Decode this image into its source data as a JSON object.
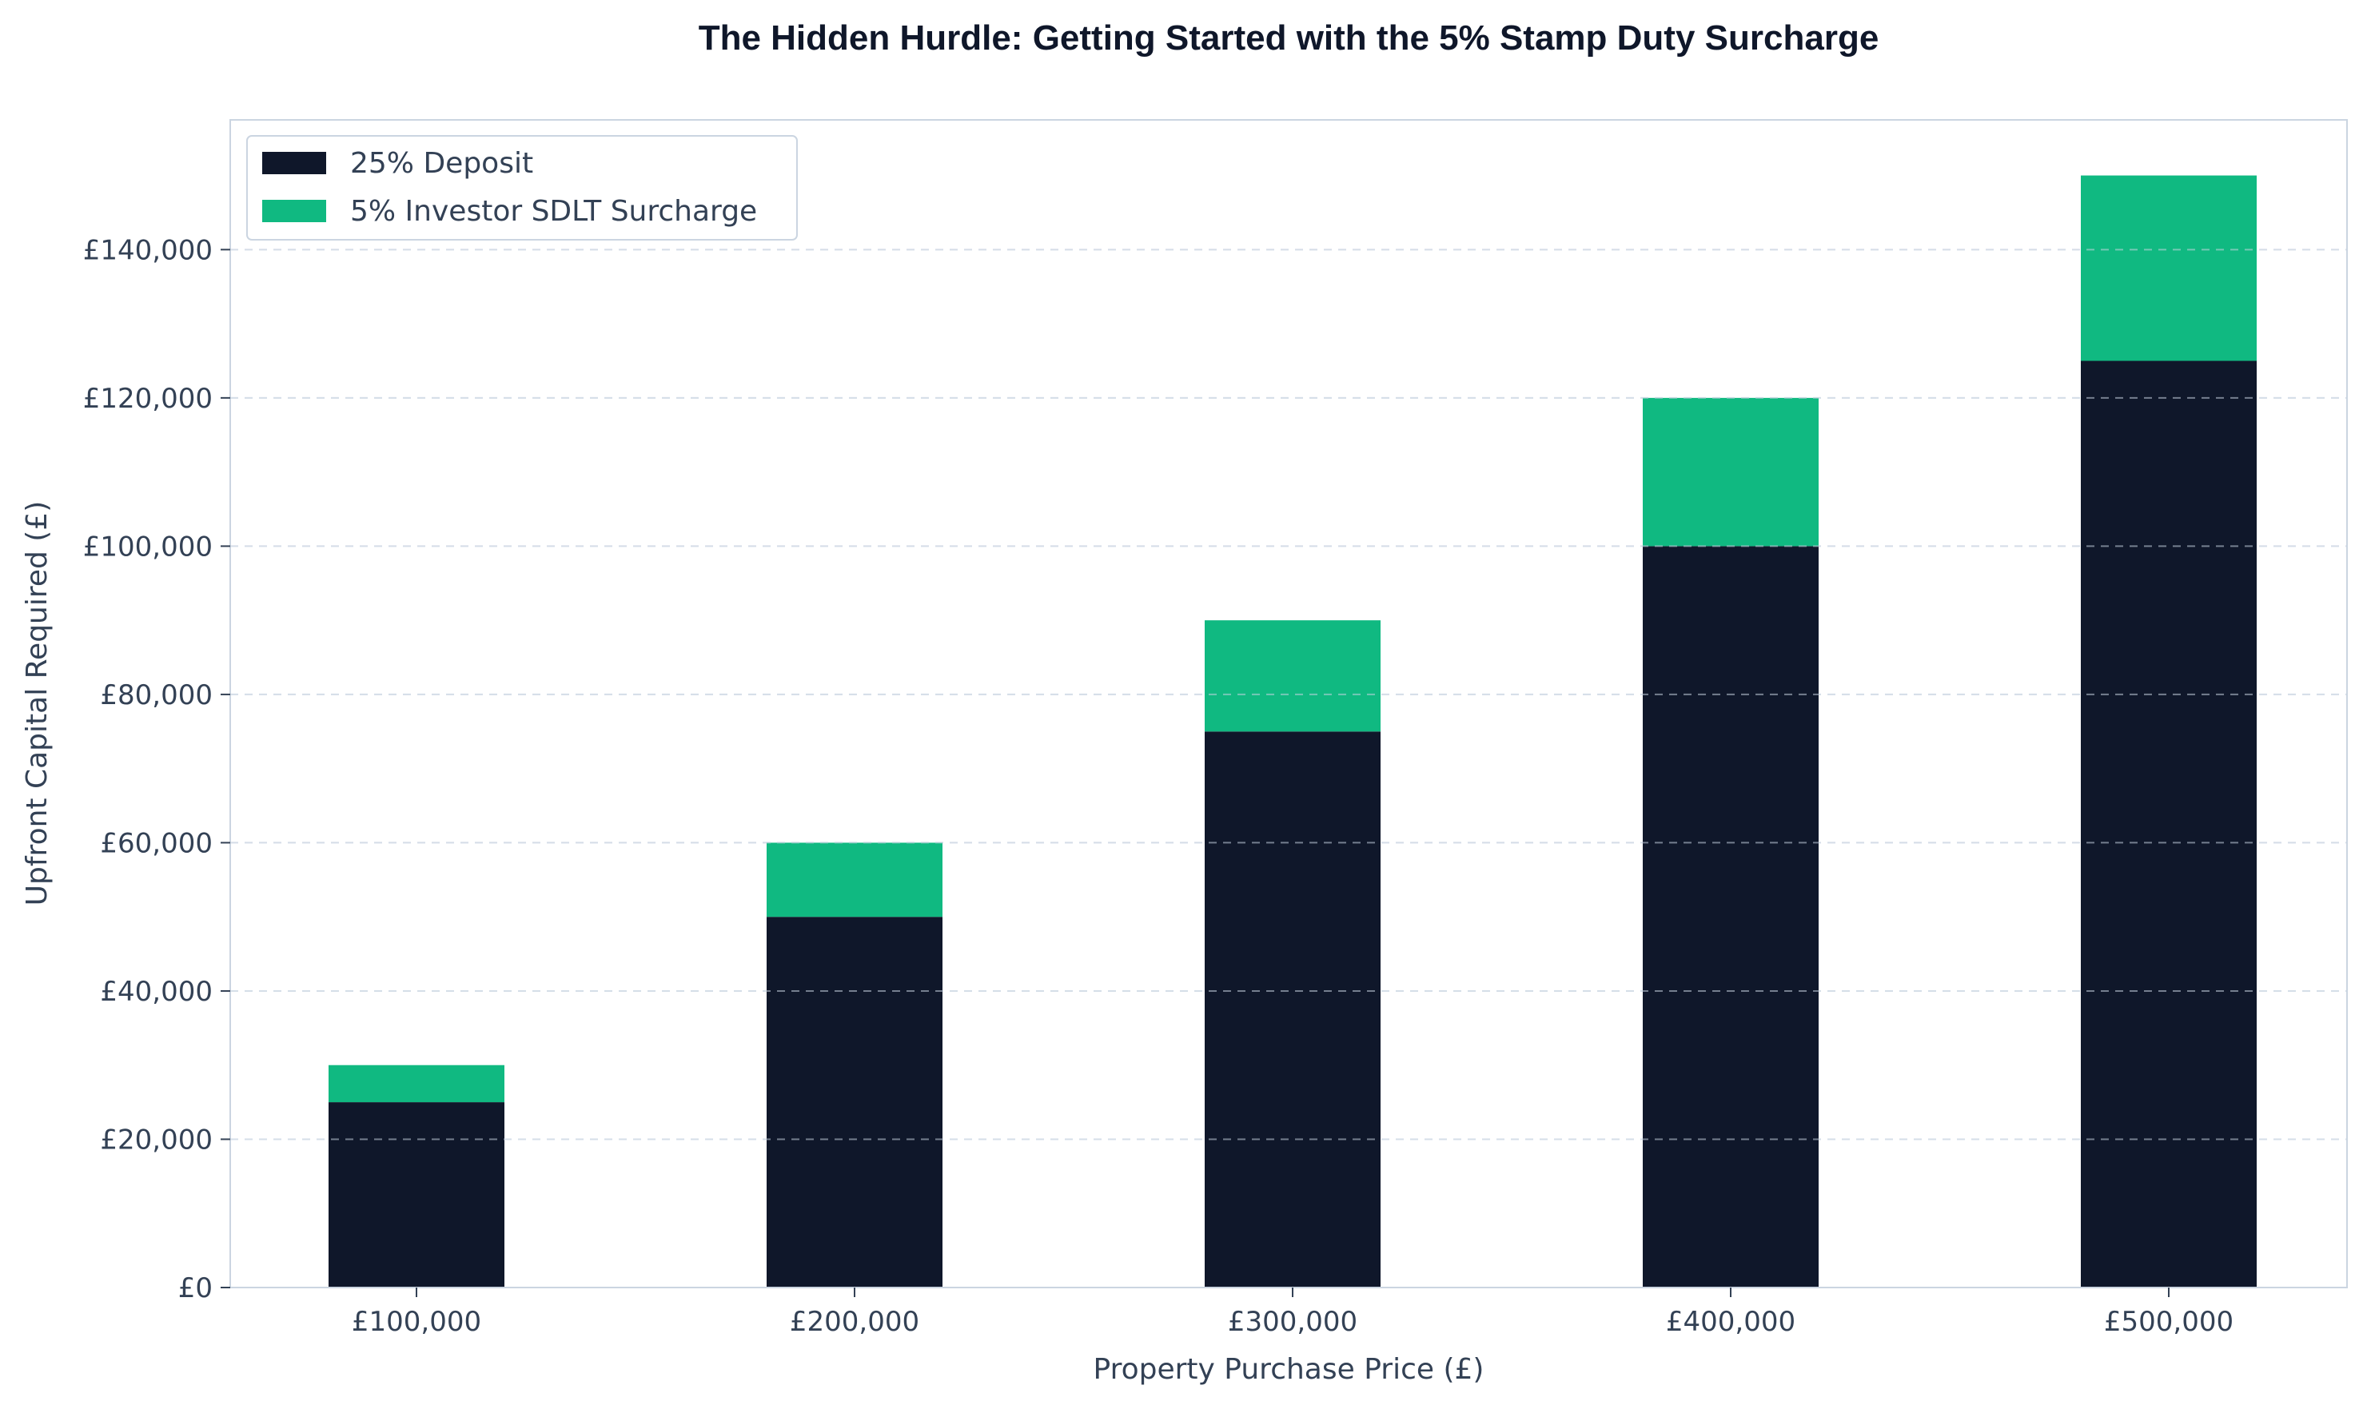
{
  "chart_data": {
    "type": "bar",
    "stacked": true,
    "title": "The Hidden Hurdle: Getting Started with the 5% Stamp Duty Surcharge",
    "xlabel": "Property Purchase Price (£)",
    "ylabel": "Upfront Capital Required (£)",
    "categories": [
      "£100,000",
      "£200,000",
      "£300,000",
      "£400,000",
      "£500,000"
    ],
    "series": [
      {
        "name": "25% Deposit",
        "color": "#0f172a",
        "values": [
          25000,
          50000,
          75000,
          100000,
          125000
        ]
      },
      {
        "name": "5% Investor SDLT Surcharge",
        "color": "#10b981",
        "values": [
          5000,
          10000,
          15000,
          20000,
          25000
        ]
      }
    ],
    "yticks": [
      0,
      20000,
      40000,
      60000,
      80000,
      100000,
      120000,
      140000
    ],
    "ytick_labels": [
      "£0",
      "£20,000",
      "£40,000",
      "£60,000",
      "£80,000",
      "£100,000",
      "£120,000",
      "£140,000"
    ],
    "ylim": [
      0,
      157500
    ],
    "grid": "y, dashed",
    "legend_position": "top-left"
  }
}
